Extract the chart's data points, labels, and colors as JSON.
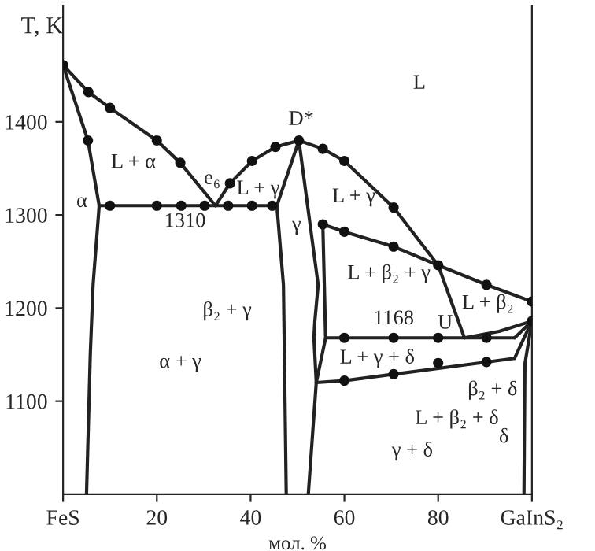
{
  "chart_data": {
    "type": "line",
    "xlabel": "мол. %",
    "ylabel": "T, K",
    "xlim": [
      0,
      100
    ],
    "ylim": [
      1000,
      1525
    ],
    "xticks": [
      {
        "value": 0,
        "label": "FeS"
      },
      20,
      40,
      60,
      80,
      {
        "value": 100,
        "label": "GaInS₂"
      }
    ],
    "yticks": [
      1100,
      1200,
      1300,
      1400
    ],
    "grid": false,
    "legend": false,
    "marker": "none",
    "line_style": "solid",
    "series": [
      {
        "color": "#222222",
        "x": [
          0,
          5.4,
          10,
          20,
          25,
          32.5
        ],
        "values": [
          1461,
          1432,
          1415,
          1380,
          1356,
          1310
        ]
      },
      {
        "color": "#222222",
        "x": [
          32.5,
          35.6,
          40.3,
          45.3,
          50.3,
          55.4,
          60,
          70.5,
          80,
          85.6
        ],
        "values": [
          1310,
          1334,
          1358,
          1373,
          1380,
          1371,
          1358,
          1308,
          1246,
          1168
        ]
      },
      {
        "color": "#222222",
        "x": [
          0,
          5.3,
          7.7,
          6.4,
          5.8,
          5
        ],
        "values": [
          1461,
          1380,
          1310,
          1225,
          1150,
          1000
        ]
      },
      {
        "color": "#222222",
        "x": [
          7.7,
          45.6
        ],
        "values": [
          1310,
          1310
        ]
      },
      {
        "color": "#222222",
        "x": [
          50.3,
          45.6,
          47,
          47.6
        ],
        "values": [
          1380,
          1310,
          1225,
          1000
        ]
      },
      {
        "color": "#222222",
        "x": [
          50.3,
          54.4,
          53.7,
          53.5,
          54,
          52.3
        ],
        "values": [
          1380,
          1225,
          1186,
          1168,
          1120,
          1000
        ]
      },
      {
        "color": "#222222",
        "x": [
          55.4,
          56,
          54
        ],
        "values": [
          1290,
          1168,
          1120
        ]
      },
      {
        "color": "#222222",
        "x": [
          55.4,
          60,
          70.5,
          80,
          90.3,
          100
        ],
        "values": [
          1290,
          1282,
          1266,
          1246,
          1225,
          1207
        ]
      },
      {
        "color": "#222222",
        "x": [
          56,
          96.3
        ],
        "values": [
          1168,
          1168
        ]
      },
      {
        "color": "#222222",
        "x": [
          85.6,
          93,
          100
        ],
        "values": [
          1168,
          1175,
          1186
        ]
      },
      {
        "color": "#222222",
        "x": [
          54,
          60,
          70.5,
          90.3,
          96.3
        ],
        "values": [
          1120,
          1122,
          1129,
          1142,
          1146
        ]
      },
      {
        "color": "#222222",
        "x": [
          96.3,
          100
        ],
        "values": [
          1168,
          1186
        ]
      },
      {
        "color": "#222222",
        "x": [
          96.3,
          100
        ],
        "values": [
          1146,
          1186
        ]
      },
      {
        "color": "#222222",
        "x": [
          100,
          98.5,
          98.3
        ],
        "values": [
          1186,
          1140,
          1000
        ]
      },
      {
        "type": "scatter",
        "color": "#111111",
        "marker": "circle",
        "x": [
          0,
          5.4,
          10,
          20,
          25,
          5.3,
          10,
          20,
          25.2,
          30.2,
          35.2,
          40.3,
          44.6,
          35.6,
          40.3,
          45.3,
          50.3,
          55.4,
          60,
          70.5,
          80,
          55.4,
          60,
          70.5,
          90.3,
          100,
          100,
          60,
          70.5,
          80,
          90.3,
          60,
          70.5,
          80,
          90.3
        ],
        "values": [
          1461,
          1432,
          1415,
          1380,
          1356,
          1380,
          1310,
          1310,
          1310,
          1310,
          1310,
          1310,
          1310,
          1334,
          1358,
          1373,
          1380,
          1371,
          1358,
          1308,
          1246,
          1290,
          1282,
          1266,
          1225,
          1207,
          1186,
          1168,
          1168,
          1168,
          1168,
          1122,
          1129,
          1141,
          1142
        ]
      }
    ],
    "annotations": [
      "L",
      "L + α",
      "α",
      "e₆",
      "L + γ",
      "D*",
      "1310",
      "L + γ",
      "γ",
      "L + β₂ + γ",
      "L + β₂",
      "β₂ + γ",
      "1168",
      "U",
      "α + γ",
      "L + γ + δ",
      "β₂ + δ",
      "L + β₂ + δ",
      "γ + δ",
      "δ"
    ]
  }
}
